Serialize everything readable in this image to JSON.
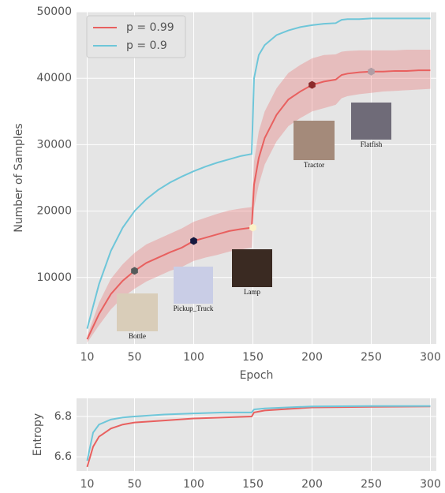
{
  "chart_data": [
    {
      "type": "line",
      "xlabel": "Epoch",
      "ylabel": "Number of Samples",
      "xlim": [
        1,
        305
      ],
      "xticks": [
        10,
        50,
        100,
        150,
        200,
        250,
        300
      ],
      "ylim": [
        0,
        50000
      ],
      "yticks": [
        10000,
        20000,
        30000,
        40000,
        50000
      ],
      "grid": true,
      "legend": "upper left",
      "x": [
        10,
        20,
        30,
        40,
        50,
        60,
        70,
        80,
        90,
        100,
        110,
        120,
        130,
        140,
        149,
        151,
        155,
        160,
        170,
        180,
        190,
        200,
        210,
        220,
        225,
        230,
        240,
        250,
        260,
        270,
        280,
        290,
        300
      ],
      "series": [
        {
          "name": "p = 0.99",
          "color": "#e8605f",
          "values": [
            700,
            4500,
            7500,
            9500,
            11000,
            12200,
            13000,
            13800,
            14500,
            15500,
            16000,
            16500,
            17000,
            17300,
            17500,
            24000,
            28000,
            31000,
            34500,
            36800,
            38000,
            39000,
            39500,
            39800,
            40500,
            40700,
            40900,
            41000,
            41000,
            41100,
            41100,
            41200,
            41200
          ],
          "lower": [
            200,
            2800,
            5200,
            7000,
            8300,
            9400,
            10200,
            11000,
            11600,
            12500,
            13000,
            13400,
            13900,
            14200,
            14500,
            20500,
            24000,
            27000,
            30500,
            32800,
            34000,
            35000,
            35500,
            36000,
            37000,
            37300,
            37600,
            37800,
            38000,
            38100,
            38200,
            38300,
            38400
          ],
          "upper": [
            1200,
            6200,
            9800,
            12000,
            13700,
            15000,
            15800,
            16600,
            17400,
            18400,
            19000,
            19600,
            20100,
            20400,
            20600,
            27500,
            32000,
            35000,
            38500,
            40800,
            42000,
            43000,
            43500,
            43600,
            44000,
            44100,
            44200,
            44200,
            44200,
            44200,
            44300,
            44300,
            44300
          ]
        },
        {
          "name": "p = 0.9",
          "color": "#6ec6d9",
          "values": [
            2300,
            9000,
            14000,
            17500,
            20000,
            21800,
            23200,
            24300,
            25200,
            26000,
            26700,
            27300,
            27800,
            28300,
            28600,
            40000,
            43500,
            45000,
            46500,
            47200,
            47700,
            48000,
            48200,
            48300,
            48800,
            48900,
            48900,
            49000,
            49000,
            49000,
            49000,
            49000,
            49000
          ]
        }
      ],
      "markers": [
        {
          "x": 50,
          "y": 11000,
          "color": "#555b5b",
          "label": "Bottle"
        },
        {
          "x": 100,
          "y": 15500,
          "color": "#15193f",
          "label": "Pickup_Truck"
        },
        {
          "x": 150,
          "y": 17500,
          "color": "#fbf2c8",
          "label": "Lamp"
        },
        {
          "x": 200,
          "y": 39000,
          "color": "#8b2a2a",
          "label": "Tractor"
        },
        {
          "x": 250,
          "y": 41000,
          "color": "#b19da4",
          "label": "Flatfish"
        }
      ]
    },
    {
      "type": "line",
      "ylabel": "Entropy",
      "xlim": [
        1,
        305
      ],
      "xticks": [
        10,
        50,
        100,
        150,
        200,
        250,
        300
      ],
      "ylim": [
        6.53,
        6.89
      ],
      "yticks": [
        6.6,
        6.8
      ],
      "grid": true,
      "x": [
        10,
        15,
        20,
        30,
        40,
        50,
        75,
        100,
        125,
        149,
        151,
        160,
        200,
        250,
        300
      ],
      "series": [
        {
          "name": "p = 0.99",
          "color": "#e8605f",
          "values": [
            6.55,
            6.65,
            6.7,
            6.74,
            6.76,
            6.77,
            6.78,
            6.79,
            6.795,
            6.8,
            6.82,
            6.83,
            6.845,
            6.848,
            6.85
          ]
        },
        {
          "name": "p = 0.9",
          "color": "#6ec6d9",
          "values": [
            6.58,
            6.72,
            6.76,
            6.785,
            6.795,
            6.8,
            6.81,
            6.815,
            6.82,
            6.82,
            6.835,
            6.84,
            6.85,
            6.852,
            6.852
          ]
        }
      ]
    }
  ]
}
